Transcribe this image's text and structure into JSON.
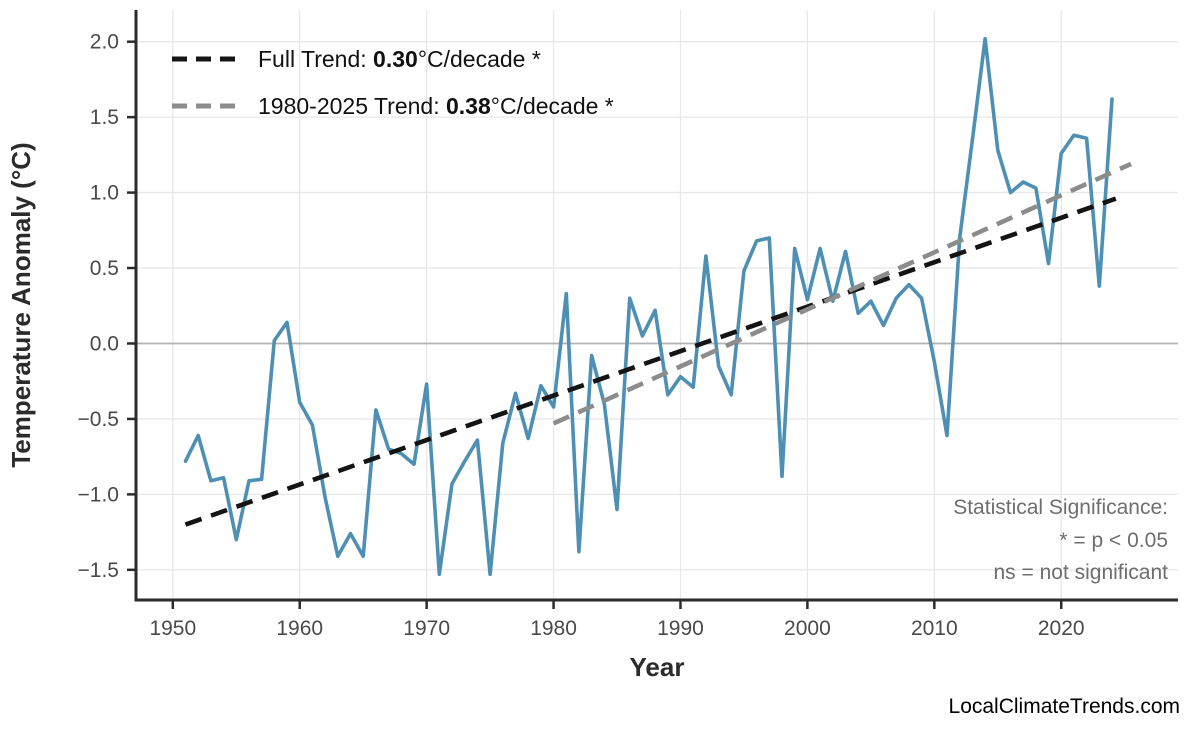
{
  "watermark": "LocalClimateTrends.com",
  "colors": {
    "series_line": "#4e90b4",
    "full_trend": "#141414",
    "recent_trend": "#8c8c8c",
    "grid": "#e8e8e8",
    "zero_line": "#b3b3b3",
    "axis": "#2b2b2b",
    "tick_label": "#4a4a4a",
    "note": "#6e6e6e",
    "background": "#ffffff"
  },
  "chart_data": {
    "type": "line",
    "title": "",
    "xlabel": "Year",
    "ylabel": "Temperature Anomaly (°C)",
    "xlim": [
      1947.1,
      2029.2
    ],
    "ylim": [
      -1.7,
      2.21
    ],
    "x_ticks": [
      1950,
      1960,
      1970,
      1980,
      1990,
      2000,
      2010,
      2020
    ],
    "y_ticks": [
      -1.5,
      -1.0,
      -0.5,
      0.0,
      0.5,
      1.0,
      1.5,
      2.0
    ],
    "grid": true,
    "zero_line": true,
    "legend_position": "top-left",
    "series": [
      {
        "name": "annual temperature anomaly",
        "years": [
          1951,
          1952,
          1953,
          1954,
          1955,
          1956,
          1957,
          1958,
          1959,
          1960,
          1961,
          1962,
          1963,
          1964,
          1965,
          1966,
          1967,
          1968,
          1969,
          1970,
          1971,
          1972,
          1973,
          1974,
          1975,
          1976,
          1977,
          1978,
          1979,
          1980,
          1981,
          1982,
          1983,
          1984,
          1985,
          1986,
          1987,
          1988,
          1989,
          1990,
          1991,
          1992,
          1993,
          1994,
          1995,
          1996,
          1997,
          1998,
          1999,
          2000,
          2001,
          2002,
          2003,
          2004,
          2005,
          2006,
          2007,
          2008,
          2009,
          2010,
          2011,
          2012,
          2013,
          2014,
          2015,
          2016,
          2017,
          2018,
          2019,
          2020,
          2021,
          2022,
          2023,
          2024
        ],
        "values": [
          -0.78,
          -0.61,
          -0.91,
          -0.89,
          -1.3,
          -0.91,
          -0.9,
          0.02,
          0.14,
          -0.39,
          -0.54,
          -1.02,
          -1.41,
          -1.26,
          -1.41,
          -0.44,
          -0.7,
          -0.73,
          -0.8,
          -0.27,
          -1.53,
          -0.93,
          -0.78,
          -0.64,
          -1.53,
          -0.66,
          -0.33,
          -0.63,
          -0.28,
          -0.42,
          0.33,
          -1.38,
          -0.08,
          -0.4,
          -1.1,
          0.3,
          0.05,
          0.22,
          -0.34,
          -0.22,
          -0.29,
          0.58,
          -0.15,
          -0.34,
          0.48,
          0.68,
          0.7,
          -0.88,
          0.63,
          0.29,
          0.63,
          0.28,
          0.61,
          0.2,
          0.28,
          0.12,
          0.3,
          0.39,
          0.3,
          -0.12,
          -0.61,
          0.7,
          1.35,
          2.02,
          1.28,
          1.0,
          1.07,
          1.03,
          0.53,
          1.26,
          1.38,
          1.36,
          0.38,
          1.62
        ]
      }
    ],
    "trend_lines": [
      {
        "name": "full trend",
        "x1": 1951,
        "y1": -1.2,
        "x2": 2024.3,
        "y2": 0.96,
        "slope_per_decade": 0.3,
        "significant": true
      },
      {
        "name": "1980-2025 trend",
        "x1": 1980,
        "y1": -0.53,
        "x2": 2025.5,
        "y2": 1.19,
        "slope_per_decade": 0.38,
        "significant": true
      }
    ],
    "legend": [
      {
        "prefix": "Full Trend: ",
        "value": "0.30",
        "suffix": "°C/decade *"
      },
      {
        "prefix": "1980-2025 Trend: ",
        "value": "0.38",
        "suffix": "°C/decade *"
      }
    ],
    "annotation": {
      "line1": "Statistical Significance:",
      "line2": "* = p < 0.05",
      "line3": "ns = not significant"
    }
  }
}
